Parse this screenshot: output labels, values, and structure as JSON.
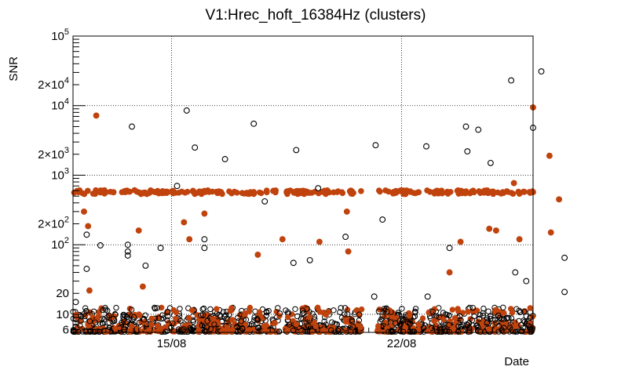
{
  "chart_data": {
    "type": "scatter",
    "title": "V1:Hrec_hoft_16384Hz (clusters)",
    "xlabel": "Date",
    "ylabel": "SNR",
    "x_axis": "date",
    "xlim": [
      "2021-08-12",
      "2021-08-26"
    ],
    "ylim": [
      5.5,
      100000
    ],
    "y_scale": "log",
    "grid": true,
    "x_ticks": [
      {
        "date": "2021-08-15",
        "label": "15/08"
      },
      {
        "date": "2021-08-22",
        "label": "22/08"
      }
    ],
    "y_ticks": [
      {
        "value": 6,
        "label": "6",
        "base": "",
        "exp": ""
      },
      {
        "value": 10,
        "label": "10",
        "base": "",
        "exp": ""
      },
      {
        "value": 20,
        "label": "20",
        "base": "",
        "exp": ""
      },
      {
        "value": 100,
        "label": "",
        "base": "10",
        "exp": "2"
      },
      {
        "value": 200,
        "label": "",
        "base": "2×10",
        "exp": "2"
      },
      {
        "value": 1000,
        "label": "",
        "base": "10",
        "exp": "3"
      },
      {
        "value": 2000,
        "label": "",
        "base": "2×10",
        "exp": "3"
      },
      {
        "value": 10000,
        "label": "",
        "base": "10",
        "exp": "4"
      },
      {
        "value": 20000,
        "label": "",
        "base": "2×10",
        "exp": "4"
      },
      {
        "value": 100000,
        "label": "",
        "base": "10",
        "exp": "5"
      }
    ],
    "y_gridlines": [
      10,
      100,
      1000,
      10000
    ],
    "x_gridlines": [
      "2021-08-15",
      "2021-08-22"
    ],
    "series": [
      {
        "marker": "open-circle",
        "color": "#000000",
        "points": [
          {
            "x": "2021-08-12 02:00",
            "y": 15
          },
          {
            "x": "2021-08-12 10:00",
            "y": 45
          },
          {
            "x": "2021-08-12 10:00",
            "y": 140
          },
          {
            "x": "2021-08-12 20:00",
            "y": 98
          },
          {
            "x": "2021-08-13 19:00",
            "y": 5000
          },
          {
            "x": "2021-08-13 16:00",
            "y": 100
          },
          {
            "x": "2021-08-13 16:00",
            "y": 80
          },
          {
            "x": "2021-08-13 16:00",
            "y": 70
          },
          {
            "x": "2021-08-14 05:00",
            "y": 50
          },
          {
            "x": "2021-08-14 16:00",
            "y": 90
          },
          {
            "x": "2021-08-15 04:00",
            "y": 700
          },
          {
            "x": "2021-08-15 11:00",
            "y": 8500
          },
          {
            "x": "2021-08-15 17:00",
            "y": 2500
          },
          {
            "x": "2021-08-16 15:00",
            "y": 1700
          },
          {
            "x": "2021-08-16 00:00",
            "y": 120
          },
          {
            "x": "2021-08-16 00:00",
            "y": 90
          },
          {
            "x": "2021-08-17 12:00",
            "y": 5500
          },
          {
            "x": "2021-08-17 20:00",
            "y": 420
          },
          {
            "x": "2021-08-18 19:00",
            "y": 2300
          },
          {
            "x": "2021-08-18 17:00",
            "y": 55
          },
          {
            "x": "2021-08-19 11:00",
            "y": 650
          },
          {
            "x": "2021-08-19 05:00",
            "y": 60
          },
          {
            "x": "2021-08-20 07:00",
            "y": 130
          },
          {
            "x": "2021-08-21 05:00",
            "y": 2700
          },
          {
            "x": "2021-08-21 04:00",
            "y": 18
          },
          {
            "x": "2021-08-21 10:00",
            "y": 230
          },
          {
            "x": "2021-08-22 18:00",
            "y": 2600
          },
          {
            "x": "2021-08-22 19:00",
            "y": 18
          },
          {
            "x": "2021-08-23 11:00",
            "y": 90
          },
          {
            "x": "2021-08-23 23:00",
            "y": 5000
          },
          {
            "x": "2021-08-24 00:00",
            "y": 2200
          },
          {
            "x": "2021-08-24 08:00",
            "y": 4500
          },
          {
            "x": "2021-08-24 17:00",
            "y": 1500
          },
          {
            "x": "2021-08-25 08:00",
            "y": 23000
          },
          {
            "x": "2021-08-25 11:00",
            "y": 40
          },
          {
            "x": "2021-08-25 19:00",
            "y": 30
          },
          {
            "x": "2021-08-26 00:00",
            "y": 4800
          },
          {
            "x": "2021-08-26 06:00",
            "y": 31000
          },
          {
            "x": "2021-08-26 23:00",
            "y": 65
          },
          {
            "x": "2021-08-26 23:00",
            "y": 21
          }
        ]
      },
      {
        "marker": "filled-circle",
        "color": "#c0430d",
        "points": [
          {
            "x": "2021-08-12 17:00",
            "y": 7200
          },
          {
            "x": "2021-08-12 08:00",
            "y": 300
          },
          {
            "x": "2021-08-12 11:00",
            "y": 185
          },
          {
            "x": "2021-08-12 12:00",
            "y": 22
          },
          {
            "x": "2021-08-14 00:00",
            "y": 160
          },
          {
            "x": "2021-08-14 03:00",
            "y": 25
          },
          {
            "x": "2021-08-15 09:00",
            "y": 210
          },
          {
            "x": "2021-08-15 13:00",
            "y": 120
          },
          {
            "x": "2021-08-16 00:00",
            "y": 280
          },
          {
            "x": "2021-08-17 15:00",
            "y": 72
          },
          {
            "x": "2021-08-18 09:00",
            "y": 120
          },
          {
            "x": "2021-08-19 03:00",
            "y": 560
          },
          {
            "x": "2021-08-19 12:00",
            "y": 110
          },
          {
            "x": "2021-08-20 08:00",
            "y": 300
          },
          {
            "x": "2021-08-20 09:00",
            "y": 80
          },
          {
            "x": "2021-08-24 16:00",
            "y": 170
          },
          {
            "x": "2021-08-24 21:00",
            "y": 160
          },
          {
            "x": "2021-08-25 10:00",
            "y": 770
          },
          {
            "x": "2021-08-25 14:00",
            "y": 120
          },
          {
            "x": "2021-08-26 00:00",
            "y": 9400
          },
          {
            "x": "2021-08-26 12:00",
            "y": 1900
          },
          {
            "x": "2021-08-26 13:00",
            "y": 150
          },
          {
            "x": "2021-08-26 19:00",
            "y": 450
          },
          {
            "x": "2021-08-23 19:00",
            "y": 110
          },
          {
            "x": "2021-08-23 11:00",
            "y": 40
          },
          {
            "x": "2021-08-12 04:00",
            "y": 570
          },
          {
            "x": "2021-08-13 00:00",
            "y": 570
          },
          {
            "x": "2021-08-14 12:00",
            "y": 570
          },
          {
            "x": "2021-08-16 12:00",
            "y": 570
          },
          {
            "x": "2021-08-17 12:00",
            "y": 570
          },
          {
            "x": "2021-08-18 12:00",
            "y": 570
          },
          {
            "x": "2021-08-19 18:00",
            "y": 570
          },
          {
            "x": "2021-08-20 12:00",
            "y": 570
          },
          {
            "x": "2021-08-21 18:00",
            "y": 570
          },
          {
            "x": "2021-08-23 00:00",
            "y": 570
          },
          {
            "x": "2021-08-24 12:00",
            "y": 570
          },
          {
            "x": "2021-08-26 00:00",
            "y": 570
          }
        ]
      }
    ]
  }
}
